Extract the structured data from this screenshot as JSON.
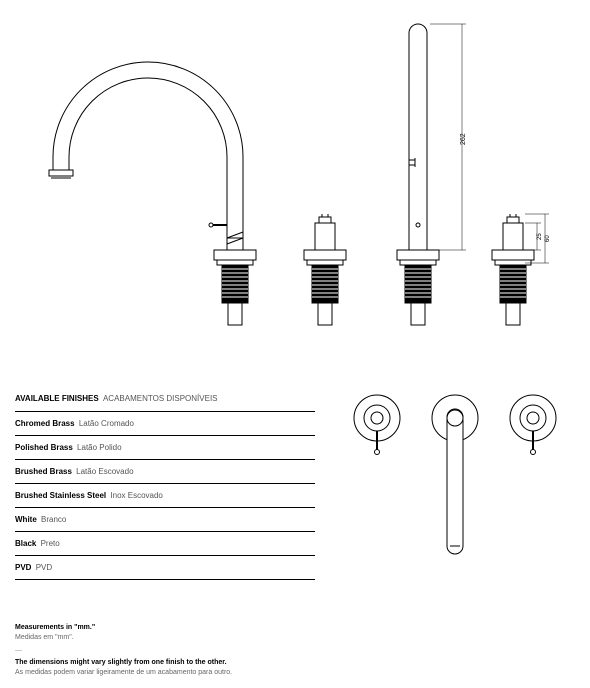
{
  "finishes": {
    "header_en": "AVAILABLE FINISHES",
    "header_pt": "ACABAMENTOS DISPONÍVEIS",
    "items": [
      {
        "en": "Chromed Brass",
        "pt": "Latão Cromado"
      },
      {
        "en": "Polished Brass",
        "pt": "Latão Polido"
      },
      {
        "en": "Brushed Brass",
        "pt": "Latão Escovado"
      },
      {
        "en": "Brushed Stainless Steel",
        "pt": "Inox Escovado"
      },
      {
        "en": "White",
        "pt": "Branco"
      },
      {
        "en": "Black",
        "pt": "Preto"
      },
      {
        "en": "PVD",
        "pt": "PVD"
      }
    ]
  },
  "notes": {
    "m1_en": "Measurements in \"mm.\"",
    "m1_pt": "Medidas em \"mm\".",
    "m2_en": "The dimensions might vary slightly from one finish to the other.",
    "m2_pt": "As medidas podem variar ligeiramente de um acabamento para outro."
  },
  "drawing": {
    "stroke": "#000000",
    "fill_white": "#ffffff",
    "fill_black": "#000000",
    "dim_height": "262",
    "dim_h1": "60",
    "dim_h2": "25",
    "faucet_arc_radius": 95,
    "spout_tube_width": 16,
    "nut_width": 42,
    "thread_width": 26,
    "handle_circle_r": 23
  }
}
